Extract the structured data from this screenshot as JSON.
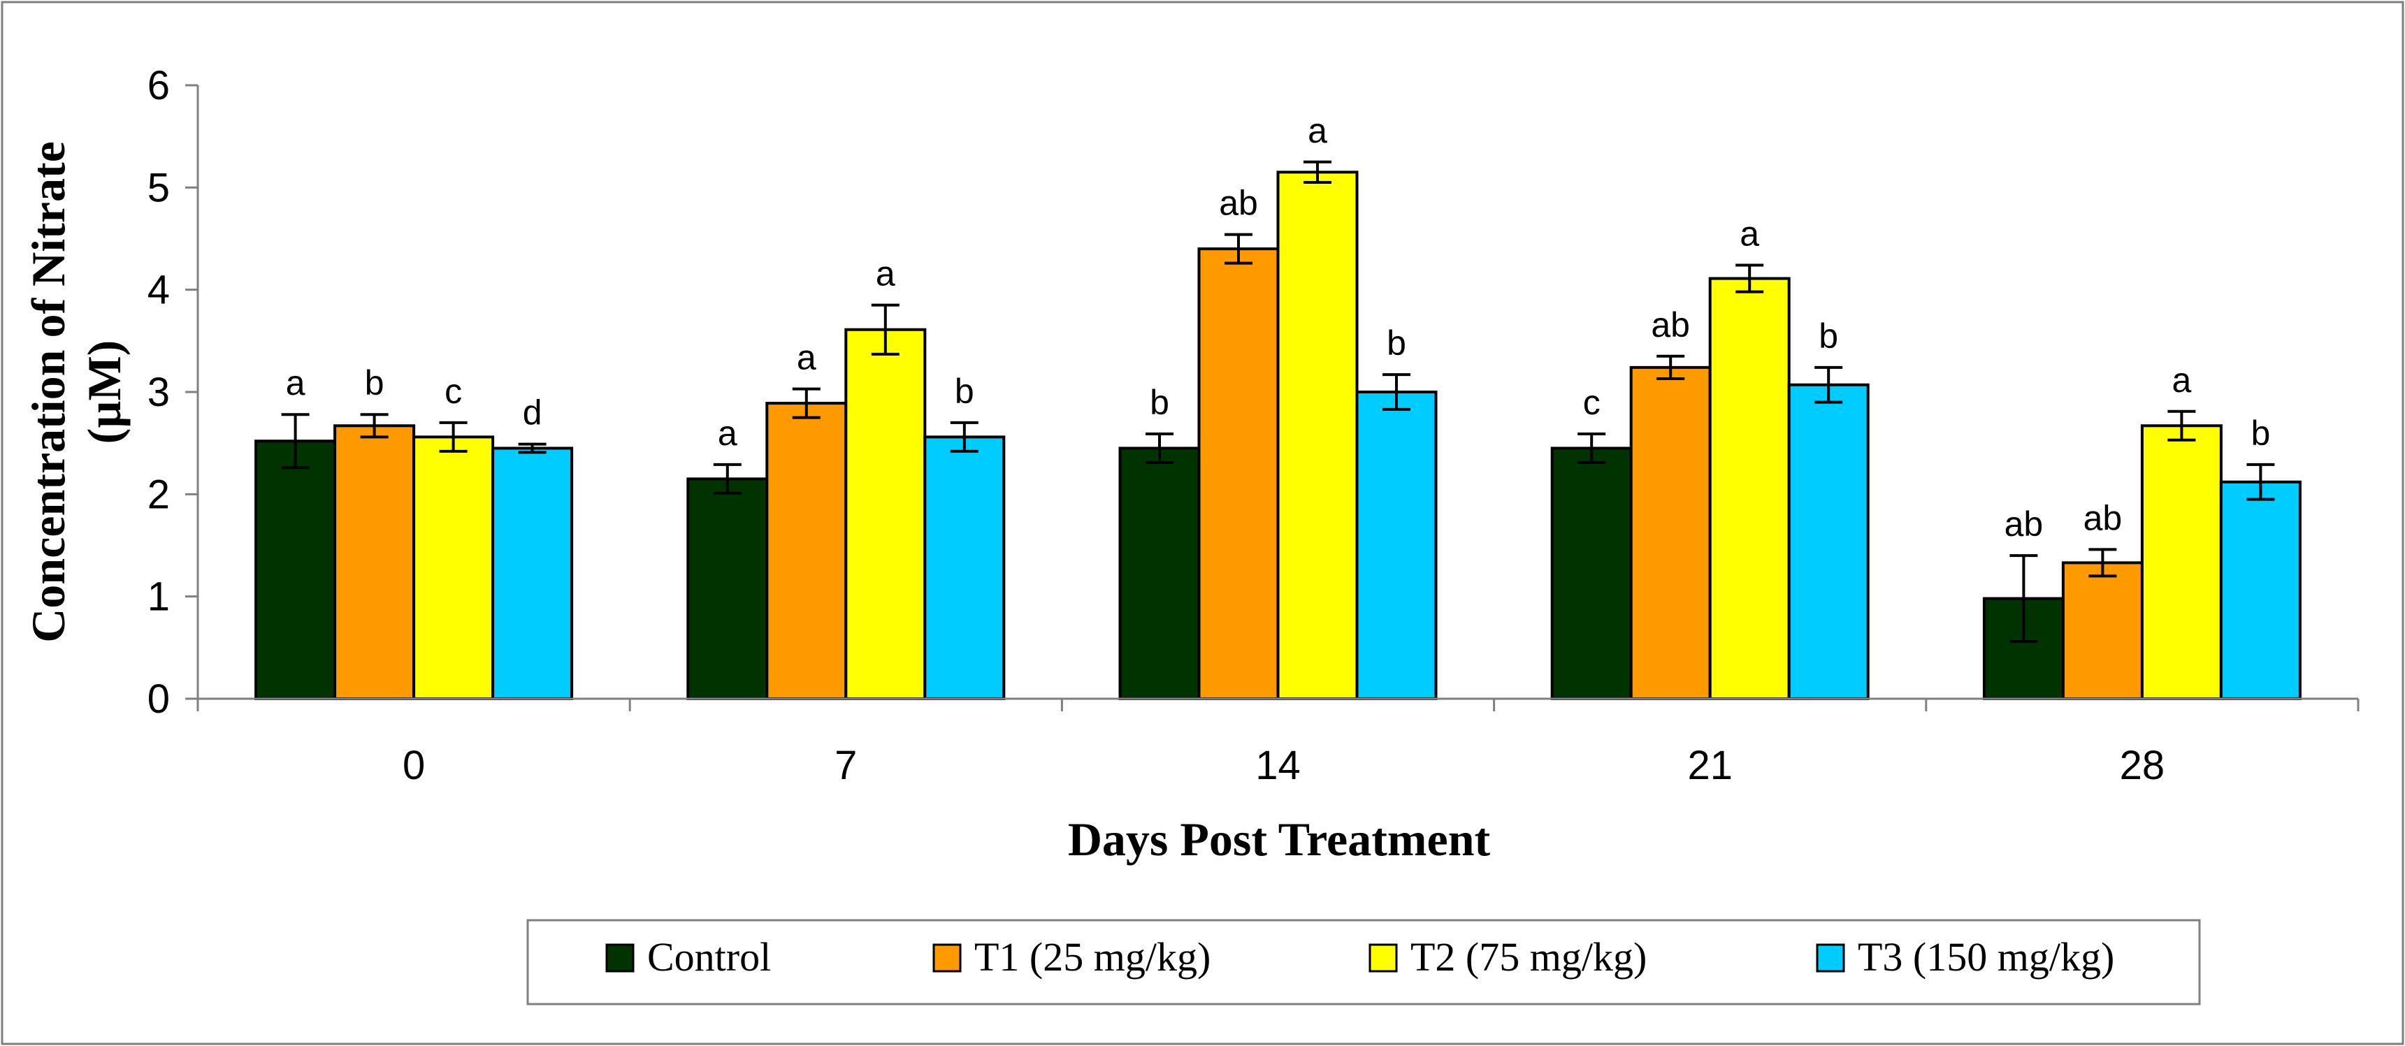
{
  "chart_data": {
    "type": "bar",
    "title": "",
    "xlabel": "Days Post Treatment",
    "ylabel_line1": "Concentration of Nitrate",
    "ylabel_line2": "(µM)",
    "ylim": [
      0,
      6
    ],
    "yticks": [
      "0",
      "1",
      "2",
      "3",
      "4",
      "5",
      "6"
    ],
    "categories": [
      "0",
      "7",
      "14",
      "21",
      "28"
    ],
    "legend_position": "bottom",
    "series": [
      {
        "name": "Control",
        "color": "#003300",
        "values": [
          2.52,
          2.15,
          2.45,
          2.45,
          0.98
        ],
        "errors": [
          0.26,
          0.14,
          0.14,
          0.14,
          0.42
        ],
        "labels": [
          "a",
          "a",
          "b",
          "c",
          "ab"
        ]
      },
      {
        "name": "T1 (25 mg/kg)",
        "color": "#ff9900",
        "values": [
          2.67,
          2.89,
          4.4,
          3.24,
          1.33
        ],
        "errors": [
          0.11,
          0.14,
          0.14,
          0.11,
          0.13
        ],
        "labels": [
          "b",
          "a",
          "ab",
          "ab",
          "ab"
        ]
      },
      {
        "name": "T2 (75 mg/kg)",
        "color": "#ffff00",
        "values": [
          2.56,
          3.61,
          5.15,
          4.11,
          2.67
        ],
        "errors": [
          0.14,
          0.24,
          0.1,
          0.13,
          0.14
        ],
        "labels": [
          "c",
          "a",
          "a",
          "a",
          "a"
        ]
      },
      {
        "name": "T3 (150 mg/kg)",
        "color": "#00ccff",
        "values": [
          2.45,
          2.56,
          3.0,
          3.07,
          2.12
        ],
        "errors": [
          0.04,
          0.14,
          0.17,
          0.17,
          0.17
        ],
        "labels": [
          "d",
          "b",
          "b",
          "b",
          "b"
        ]
      }
    ]
  }
}
